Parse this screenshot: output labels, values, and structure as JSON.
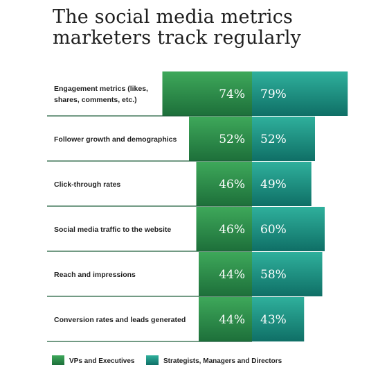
{
  "title_line1": "The social media metrics",
  "title_line2": "marketers track regularly",
  "colors": {
    "vp_dark": "#1d6f3a",
    "vp_light": "#3ea85a",
    "st_dark": "#0f6f66",
    "st_light": "#2fb09c",
    "divider": "#1e5e3a"
  },
  "chart_data": {
    "type": "bar",
    "title": "The social media metrics marketers track regularly",
    "categories": [
      [
        "Engagement metrics (likes,",
        "shares, comments, etc.)"
      ],
      [
        "Follower growth and demographics"
      ],
      [
        "Click-through rates"
      ],
      [
        "Social media traffic to the website"
      ],
      [
        "Reach and impressions"
      ],
      [
        "Conversion rates and leads generated"
      ]
    ],
    "series": [
      {
        "name": "VPs and Executives",
        "values": [
          74,
          52,
          46,
          46,
          44,
          44
        ]
      },
      {
        "name": "Strategists, Managers and Directors",
        "values": [
          79,
          52,
          49,
          60,
          58,
          43
        ]
      }
    ],
    "value_suffix": "%",
    "legend_position": "bottom"
  }
}
